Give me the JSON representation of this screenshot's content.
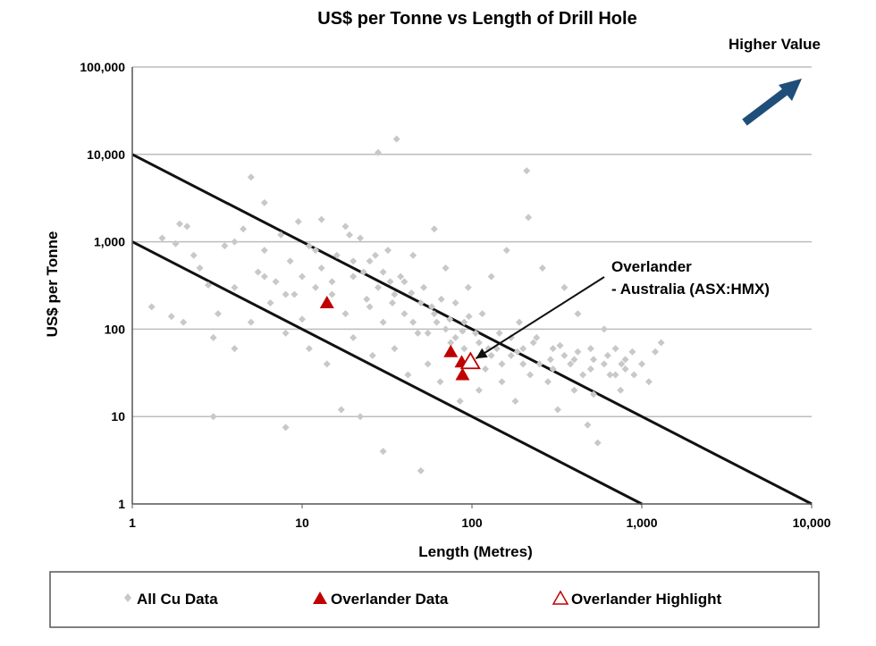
{
  "chart_data": {
    "type": "scatter",
    "title": "US$ per Tonne vs Length of Drill Hole",
    "xlabel": "Length (Metres)",
    "ylabel": "US$ per Tonne",
    "x_scale": "log",
    "y_scale": "log",
    "xlim": [
      1,
      10000
    ],
    "ylim": [
      1,
      100000
    ],
    "x_ticks": [
      "1",
      "10",
      "100",
      "1,000",
      "10,000"
    ],
    "y_ticks": [
      "1",
      "10",
      "100",
      "1,000",
      "10,000",
      "100,000"
    ],
    "grid": "horizontal",
    "legend_position": "bottom",
    "series": [
      {
        "name": "All Cu  Data",
        "marker": "diamond",
        "color": "#c8c8c8",
        "points": [
          [
            1.3,
            180
          ],
          [
            1.5,
            1100
          ],
          [
            1.7,
            140
          ],
          [
            1.8,
            950
          ],
          [
            1.9,
            1600
          ],
          [
            2,
            120
          ],
          [
            2.1,
            1500
          ],
          [
            2.3,
            700
          ],
          [
            2.5,
            500
          ],
          [
            2.8,
            320
          ],
          [
            3,
            10
          ],
          [
            3,
            80
          ],
          [
            3.2,
            150
          ],
          [
            3.5,
            900
          ],
          [
            4,
            300
          ],
          [
            4,
            60
          ],
          [
            4.5,
            1400
          ],
          [
            5,
            5500
          ],
          [
            5,
            120
          ],
          [
            5.5,
            450
          ],
          [
            6,
            2800
          ],
          [
            6,
            800
          ],
          [
            6.5,
            200
          ],
          [
            7,
            350
          ],
          [
            7.5,
            1200
          ],
          [
            8,
            7.5
          ],
          [
            8,
            90
          ],
          [
            8.5,
            600
          ],
          [
            9,
            250
          ],
          [
            9.5,
            1700
          ],
          [
            10,
            400
          ],
          [
            10,
            130
          ],
          [
            11,
            900
          ],
          [
            11,
            60
          ],
          [
            12,
            300
          ],
          [
            13,
            1800
          ],
          [
            13,
            500
          ],
          [
            14,
            40
          ],
          [
            15,
            250
          ],
          [
            16,
            700
          ],
          [
            17,
            12
          ],
          [
            18,
            1500
          ],
          [
            18,
            150
          ],
          [
            20,
            400
          ],
          [
            20,
            80
          ],
          [
            22,
            1100
          ],
          [
            22,
            10
          ],
          [
            24,
            220
          ],
          [
            25,
            600
          ],
          [
            26,
            50
          ],
          [
            28,
            10500
          ],
          [
            28,
            300
          ],
          [
            30,
            4
          ],
          [
            30,
            120
          ],
          [
            32,
            800
          ],
          [
            34,
            200
          ],
          [
            35,
            60
          ],
          [
            36,
            15000
          ],
          [
            38,
            400
          ],
          [
            40,
            150
          ],
          [
            42,
            30
          ],
          [
            45,
            700
          ],
          [
            48,
            90
          ],
          [
            50,
            2.4
          ],
          [
            52,
            300
          ],
          [
            55,
            40
          ],
          [
            60,
            1400
          ],
          [
            62,
            120
          ],
          [
            65,
            25
          ],
          [
            70,
            500
          ],
          [
            75,
            70
          ],
          [
            80,
            200
          ],
          [
            85,
            15
          ],
          [
            90,
            60
          ],
          [
            95,
            300
          ],
          [
            100,
            45
          ],
          [
            105,
            90
          ],
          [
            110,
            20
          ],
          [
            115,
            150
          ],
          [
            120,
            35
          ],
          [
            130,
            400
          ],
          [
            140,
            60
          ],
          [
            150,
            25
          ],
          [
            160,
            800
          ],
          [
            170,
            50
          ],
          [
            180,
            15
          ],
          [
            190,
            120
          ],
          [
            200,
            40
          ],
          [
            210,
            6500
          ],
          [
            215,
            1900
          ],
          [
            220,
            30
          ],
          [
            240,
            80
          ],
          [
            260,
            500
          ],
          [
            280,
            25
          ],
          [
            300,
            60
          ],
          [
            320,
            12
          ],
          [
            350,
            300
          ],
          [
            380,
            40
          ],
          [
            400,
            20
          ],
          [
            420,
            150
          ],
          [
            450,
            30
          ],
          [
            480,
            8
          ],
          [
            500,
            60
          ],
          [
            520,
            18
          ],
          [
            550,
            5
          ],
          [
            600,
            100
          ],
          [
            650,
            30
          ],
          [
            700,
            60
          ],
          [
            750,
            20
          ],
          [
            800,
            45
          ],
          [
            900,
            30
          ],
          [
            1000,
            40
          ],
          [
            1100,
            25
          ],
          [
            1200,
            55
          ],
          [
            1300,
            70
          ],
          [
            4,
            1000
          ],
          [
            6,
            400
          ],
          [
            8,
            250
          ],
          [
            12,
            800
          ],
          [
            15,
            350
          ],
          [
            20,
            600
          ],
          [
            25,
            180
          ],
          [
            30,
            450
          ],
          [
            35,
            250
          ],
          [
            40,
            350
          ],
          [
            45,
            120
          ],
          [
            50,
            200
          ],
          [
            55,
            90
          ],
          [
            60,
            150
          ],
          [
            70,
            100
          ],
          [
            80,
            80
          ],
          [
            90,
            120
          ],
          [
            110,
            70
          ],
          [
            130,
            50
          ],
          [
            150,
            40
          ],
          [
            170,
            80
          ],
          [
            200,
            60
          ],
          [
            250,
            40
          ],
          [
            300,
            35
          ],
          [
            350,
            50
          ],
          [
            400,
            45
          ],
          [
            500,
            35
          ],
          [
            600,
            40
          ],
          [
            700,
            30
          ],
          [
            800,
            35
          ],
          [
            19,
            1200
          ],
          [
            23,
            450
          ],
          [
            27,
            700
          ],
          [
            33,
            350
          ],
          [
            44,
            260
          ],
          [
            58,
            180
          ],
          [
            66,
            220
          ],
          [
            74,
            130
          ],
          [
            88,
            95
          ],
          [
            96,
            140
          ],
          [
            125,
            60
          ],
          [
            145,
            90
          ],
          [
            185,
            55
          ],
          [
            230,
            70
          ],
          [
            290,
            45
          ],
          [
            330,
            65
          ],
          [
            420,
            55
          ],
          [
            520,
            45
          ],
          [
            630,
            50
          ],
          [
            760,
            40
          ],
          [
            880,
            55
          ]
        ]
      },
      {
        "name": "Overlander Data",
        "marker": "triangle",
        "color": "#c00000",
        "points": [
          [
            14,
            200
          ],
          [
            75,
            55
          ],
          [
            87,
            42
          ],
          [
            88,
            30
          ]
        ]
      },
      {
        "name": "Overlander Highlight",
        "marker": "triangle-open",
        "color": "#c00000",
        "points": [
          [
            98,
            42
          ]
        ]
      }
    ],
    "reference_lines": [
      {
        "from": [
          1,
          10000
        ],
        "to": [
          10000,
          1
        ]
      },
      {
        "from": [
          1,
          1000
        ],
        "to": [
          1000,
          1
        ]
      }
    ],
    "annotations": [
      {
        "text": "Overlander",
        "points_to": [
          98,
          42
        ]
      },
      {
        "text": "- Australia (ASX:HMX)"
      },
      {
        "text": "Higher Value",
        "icon": "arrow-up-right-icon",
        "color": "#1f4e79"
      }
    ]
  }
}
